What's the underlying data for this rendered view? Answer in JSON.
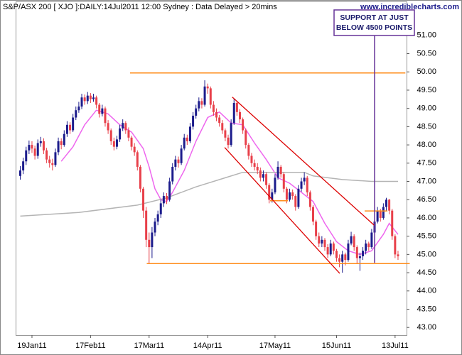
{
  "chart_data": {
    "type": "candlestick",
    "title": "S&P/ASX 200 [ XJO ]:DAILY:14Jul2011 12:00 Sydney : Data Delayed > 20mins",
    "source": "www.incrediblecharts.com",
    "categories": [
      null,
      null,
      null,
      null,
      "19Jan11",
      null,
      null,
      null,
      null,
      null,
      null,
      null,
      null,
      null,
      null,
      null,
      null,
      null,
      null,
      null,
      null,
      null,
      null,
      null,
      "17Feb11",
      null,
      null,
      null,
      null,
      null,
      null,
      null,
      null,
      null,
      null,
      null,
      null,
      null,
      null,
      null,
      null,
      null,
      null,
      null,
      "17Mar11",
      null,
      null,
      null,
      null,
      null,
      null,
      null,
      null,
      null,
      null,
      null,
      null,
      null,
      null,
      null,
      null,
      null,
      null,
      null,
      "14Apr11",
      null,
      null,
      null,
      null,
      null,
      null,
      null,
      null,
      null,
      null,
      null,
      null,
      null,
      null,
      null,
      null,
      null,
      null,
      null,
      null,
      null,
      null,
      "17May11",
      null,
      null,
      null,
      null,
      null,
      null,
      null,
      null,
      null,
      null,
      null,
      null,
      null,
      null,
      null,
      null,
      null,
      null,
      null,
      null,
      "15Jun11",
      null,
      null,
      null,
      null,
      null,
      null,
      null,
      null,
      null,
      null,
      null,
      null,
      null,
      null,
      null,
      null,
      null,
      null,
      null,
      "13Jul11",
      null
    ],
    "open": [
      47.15,
      47.3,
      47.55,
      47.85,
      48.0,
      47.9,
      47.7,
      48.05,
      48.1,
      47.85,
      47.6,
      47.5,
      47.45,
      47.8,
      48.1,
      48.0,
      48.3,
      48.55,
      48.4,
      48.75,
      48.95,
      49.05,
      49.3,
      49.2,
      49.35,
      49.25,
      49.3,
      49.1,
      48.85,
      49.0,
      48.6,
      48.4,
      48.1,
      47.95,
      48.15,
      48.45,
      48.6,
      48.4,
      48.2,
      47.95,
      47.8,
      47.4,
      46.8,
      46.2,
      45.4,
      45.2,
      45.6,
      45.9,
      46.1,
      46.4,
      46.6,
      46.5,
      47.0,
      47.4,
      47.6,
      47.5,
      47.9,
      48.2,
      48.1,
      48.5,
      48.8,
      49.0,
      49.2,
      49.1,
      49.6,
      49.55,
      49.1,
      48.9,
      48.75,
      48.6,
      48.4,
      48.2,
      48.0,
      48.6,
      49.15,
      48.9,
      48.7,
      48.4,
      48.0,
      47.7,
      47.5,
      47.4,
      47.3,
      47.1,
      47.2,
      46.9,
      46.5,
      46.7,
      47.1,
      47.4,
      47.2,
      46.8,
      46.5,
      46.7,
      46.6,
      46.3,
      46.8,
      47.0,
      47.1,
      46.7,
      46.3,
      45.9,
      45.5,
      45.3,
      45.4,
      45.2,
      45.0,
      45.3,
      45.1,
      44.9,
      44.8,
      45.0,
      44.85,
      45.3,
      45.5,
      45.2,
      44.9,
      44.95,
      45.1,
      45.3,
      45.2,
      45.6,
      45.9,
      46.2,
      46.0,
      46.3,
      46.5,
      46.2,
      45.5,
      45.0
    ],
    "high": [
      47.42,
      47.65,
      47.95,
      48.12,
      48.1,
      47.98,
      48.15,
      48.22,
      48.18,
      47.92,
      47.7,
      47.62,
      47.9,
      48.2,
      48.18,
      48.4,
      48.65,
      48.62,
      48.85,
      49.05,
      49.18,
      49.4,
      49.38,
      49.45,
      49.42,
      49.4,
      49.35,
      49.15,
      49.1,
      49.05,
      48.68,
      48.45,
      48.2,
      48.25,
      48.55,
      48.7,
      48.65,
      48.48,
      48.25,
      48.05,
      47.85,
      47.45,
      46.85,
      46.3,
      45.6,
      45.75,
      46.0,
      46.2,
      46.5,
      46.7,
      46.68,
      47.1,
      47.5,
      47.7,
      47.68,
      48.0,
      48.3,
      48.28,
      48.6,
      48.9,
      49.1,
      49.3,
      49.28,
      49.77,
      49.68,
      49.6,
      49.2,
      49.0,
      48.82,
      48.68,
      48.45,
      48.28,
      48.7,
      49.25,
      49.2,
      48.98,
      48.75,
      48.45,
      48.05,
      47.78,
      47.6,
      47.5,
      47.38,
      47.3,
      47.25,
      46.95,
      46.8,
      47.2,
      47.55,
      47.45,
      47.25,
      46.85,
      46.8,
      46.78,
      46.65,
      46.9,
      47.1,
      47.25,
      47.15,
      46.75,
      46.35,
      45.95,
      45.6,
      45.5,
      45.45,
      45.28,
      45.4,
      45.35,
      45.15,
      45.0,
      45.1,
      45.05,
      45.4,
      45.62,
      45.55,
      45.25,
      45.05,
      45.2,
      45.4,
      45.35,
      45.7,
      46.2,
      46.3,
      46.25,
      46.4,
      46.55,
      46.52,
      46.25,
      45.55,
      45.1
    ],
    "low": [
      47.05,
      47.2,
      47.45,
      47.75,
      47.78,
      47.6,
      47.62,
      47.95,
      47.75,
      47.5,
      47.38,
      47.3,
      47.4,
      47.72,
      47.88,
      47.95,
      48.22,
      48.3,
      48.35,
      48.68,
      48.88,
      48.98,
      49.1,
      49.12,
      49.15,
      49.18,
      49.0,
      48.75,
      48.78,
      48.5,
      48.3,
      48.0,
      47.85,
      47.88,
      48.08,
      48.38,
      48.3,
      48.1,
      47.85,
      47.7,
      47.3,
      46.7,
      46.0,
      45.2,
      44.75,
      44.9,
      45.5,
      45.8,
      46.0,
      46.3,
      46.38,
      46.45,
      46.92,
      47.3,
      47.38,
      47.45,
      47.85,
      48.0,
      48.05,
      48.42,
      48.72,
      48.92,
      49.0,
      49.05,
      49.4,
      49.0,
      48.8,
      48.65,
      48.5,
      48.3,
      48.1,
      47.9,
      47.95,
      48.55,
      48.8,
      48.6,
      48.3,
      47.9,
      47.6,
      47.4,
      47.3,
      47.2,
      47.0,
      47.0,
      46.8,
      46.4,
      46.42,
      46.65,
      47.05,
      47.1,
      46.7,
      46.4,
      46.45,
      46.5,
      46.2,
      46.25,
      46.72,
      46.9,
      46.6,
      46.2,
      45.8,
      45.4,
      45.2,
      45.2,
      45.1,
      44.9,
      44.95,
      45.0,
      44.8,
      44.65,
      44.5,
      44.7,
      44.8,
      45.25,
      45.1,
      44.75,
      44.55,
      44.85,
      45.0,
      45.1,
      45.15,
      44.8,
      45.85,
      45.9,
      45.95,
      46.2,
      46.1,
      45.4,
      44.9,
      44.85
    ],
    "close": [
      47.3,
      47.55,
      47.85,
      48.0,
      47.9,
      47.7,
      48.05,
      48.1,
      47.85,
      47.6,
      47.5,
      47.45,
      47.8,
      48.1,
      48.0,
      48.3,
      48.55,
      48.4,
      48.75,
      48.95,
      49.05,
      49.3,
      49.2,
      49.35,
      49.25,
      49.3,
      49.1,
      48.85,
      49.0,
      48.6,
      48.4,
      48.1,
      47.95,
      48.15,
      48.45,
      48.6,
      48.4,
      48.2,
      47.95,
      47.8,
      47.4,
      46.8,
      46.2,
      45.4,
      45.2,
      45.6,
      45.9,
      46.1,
      46.4,
      46.6,
      46.5,
      47.0,
      47.4,
      47.6,
      47.5,
      47.9,
      48.2,
      48.1,
      48.5,
      48.8,
      49.0,
      49.2,
      49.1,
      49.6,
      49.55,
      49.1,
      48.9,
      48.75,
      48.6,
      48.4,
      48.2,
      48.0,
      48.6,
      49.15,
      48.9,
      48.7,
      48.4,
      48.0,
      47.7,
      47.5,
      47.4,
      47.3,
      47.1,
      47.2,
      46.9,
      46.5,
      46.7,
      47.1,
      47.4,
      47.2,
      46.8,
      46.5,
      46.7,
      46.6,
      46.3,
      46.8,
      47.0,
      47.1,
      46.7,
      46.3,
      45.9,
      45.5,
      45.3,
      45.4,
      45.2,
      45.0,
      45.3,
      45.1,
      44.9,
      44.8,
      45.0,
      44.85,
      45.3,
      45.5,
      45.2,
      44.9,
      44.95,
      45.1,
      45.3,
      45.2,
      45.6,
      45.9,
      46.2,
      46.0,
      46.3,
      46.5,
      46.2,
      45.5,
      45.0,
      44.95
    ],
    "up_color": "#1c1c8c",
    "down_color": "#e8404a",
    "averages": [
      {
        "color": "#ee66ee",
        "x": [
          14,
          18,
          22,
          26,
          30,
          34,
          38,
          42,
          44,
          46,
          48,
          50,
          52,
          56,
          60,
          64,
          68,
          72,
          76,
          80,
          84,
          88,
          92,
          96,
          100,
          104,
          108,
          112,
          116,
          120,
          124,
          126,
          129
        ],
        "values": [
          47.55,
          47.95,
          48.55,
          48.95,
          48.85,
          48.55,
          48.35,
          47.9,
          47.4,
          46.8,
          46.5,
          46.45,
          46.7,
          47.3,
          48.1,
          48.75,
          48.9,
          48.6,
          48.55,
          48.05,
          47.6,
          47.1,
          46.95,
          46.7,
          46.45,
          45.85,
          45.35,
          45.1,
          45.0,
          45.1,
          45.55,
          45.85,
          45.55
        ]
      },
      {
        "color": "#b4b4b4",
        "x": [
          0,
          20,
          40,
          50,
          60,
          70,
          76,
          80,
          90,
          97,
          100,
          110,
          120,
          129
        ],
        "values": [
          46.05,
          46.15,
          46.35,
          46.55,
          46.85,
          47.1,
          47.25,
          47.25,
          47.25,
          47.25,
          47.15,
          47.05,
          47.0,
          47.0
        ]
      }
    ],
    "levels": [
      {
        "value": 49.97,
        "from": 37.5,
        "to": 131.5
      },
      {
        "value": 44.75,
        "from": 43.2,
        "to": 133
      },
      {
        "value": 46.47,
        "from": 85.3,
        "to": 91.4
      },
      {
        "value": 46.19,
        "from": 117.6,
        "to": 125.4
      }
    ],
    "level_color": "#ff8c1a",
    "trendlines": [
      {
        "x": [
          72.4,
          121
        ],
        "y": [
          49.31,
          45.79
        ]
      },
      {
        "x": [
          69.8,
          109.1
        ],
        "y": [
          47.93,
          44.48
        ]
      }
    ],
    "trend_color": "#dd0000",
    "annotation": {
      "text": [
        "SUPPORT AT JUST",
        "BELOW 4500 POINTS"
      ],
      "x": 121,
      "y": 44.77,
      "color": "#663399"
    },
    "ylim": [
      42.79,
      51.93
    ],
    "yticks": [
      {
        "value": 43,
        "label": "43.00"
      },
      {
        "value": 43.5,
        "label": "43.50"
      },
      {
        "value": 44,
        "label": "44.00"
      },
      {
        "value": 44.5,
        "label": "44.50"
      },
      {
        "value": 45,
        "label": "45.00"
      },
      {
        "value": 45.5,
        "label": "45.50"
      },
      {
        "value": 46,
        "label": "46.00"
      },
      {
        "value": 46.5,
        "label": "46.50"
      },
      {
        "value": 47,
        "label": "47.00"
      },
      {
        "value": 47.5,
        "label": "47.50"
      },
      {
        "value": 48,
        "label": "48.00"
      },
      {
        "value": 48.5,
        "label": "48.50"
      },
      {
        "value": 49,
        "label": "49.00"
      },
      {
        "value": 49.5,
        "label": "49.50"
      },
      {
        "value": 50,
        "label": "50.00"
      },
      {
        "value": 50.5,
        "label": "50.50"
      },
      {
        "value": 51,
        "label": "51.00"
      }
    ],
    "grid": false
  }
}
